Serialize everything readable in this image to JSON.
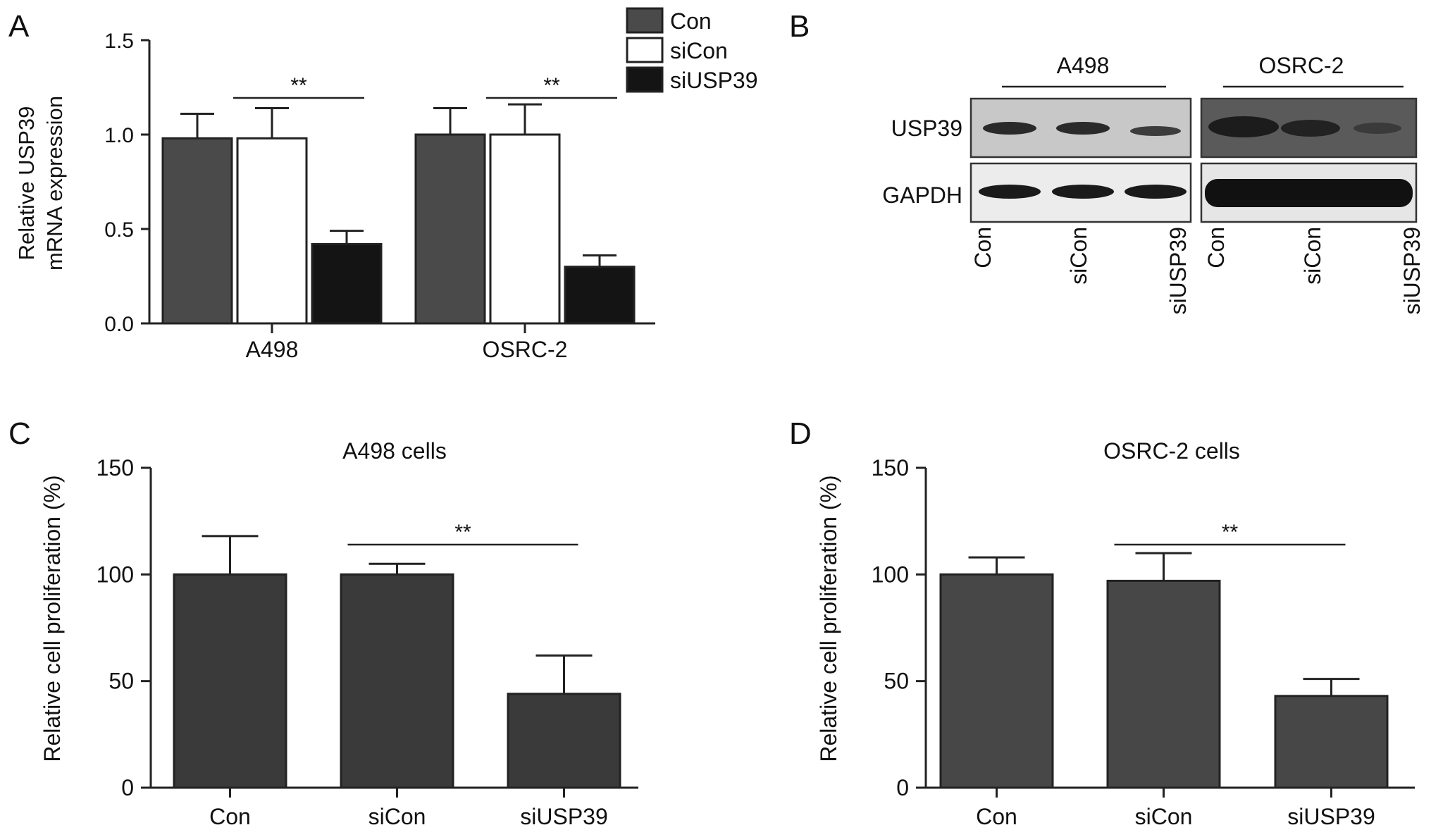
{
  "panel_labels": {
    "a": "A",
    "b": "B",
    "c": "C",
    "d": "D"
  },
  "colors": {
    "con": "#4a4a4a",
    "sicon": "#ffffff",
    "siusp39": "#141414",
    "bar_dark": "#3a3a3a",
    "axis": "#222222"
  },
  "chart_data": [
    {
      "panel": "A",
      "type": "bar",
      "title": "",
      "ylabel": [
        "Relative USP39",
        "mRNA expression"
      ],
      "ylim": [
        0,
        1.5
      ],
      "yticks": [
        "0.0",
        "0.5",
        "1.0",
        "1.5"
      ],
      "categories": [
        "A498",
        "OSRC-2"
      ],
      "series": [
        {
          "name": "Con",
          "values": [
            0.98,
            1.0
          ],
          "errors": [
            0.13,
            0.14
          ]
        },
        {
          "name": "siCon",
          "values": [
            0.98,
            1.0
          ],
          "errors": [
            0.16,
            0.16
          ]
        },
        {
          "name": "siUSP39",
          "values": [
            0.42,
            0.3
          ],
          "errors": [
            0.07,
            0.06
          ]
        }
      ],
      "significance": [
        "**",
        "**"
      ],
      "legend": {
        "placement": "top-right",
        "entries": [
          "Con",
          "siCon",
          "siUSP39"
        ]
      }
    },
    {
      "panel": "C",
      "type": "bar",
      "title": "A498 cells",
      "ylabel": "Relative cell proliferation (%)",
      "ylim": [
        0,
        150
      ],
      "yticks": [
        "0",
        "50",
        "100",
        "150"
      ],
      "categories": [
        "Con",
        "siCon",
        "siUSP39"
      ],
      "values": [
        100,
        100,
        44
      ],
      "errors": [
        18,
        5,
        18
      ],
      "significance": "**"
    },
    {
      "panel": "D",
      "type": "bar",
      "title": "OSRC-2 cells",
      "ylabel": "Relative cell proliferation (%)",
      "ylim": [
        0,
        150
      ],
      "yticks": [
        "0",
        "50",
        "100",
        "150"
      ],
      "categories": [
        "Con",
        "siCon",
        "siUSP39"
      ],
      "values": [
        100,
        97,
        43
      ],
      "errors": [
        8,
        13,
        8
      ],
      "significance": "**"
    }
  ],
  "western_blot": {
    "cell_lines": [
      "A498",
      "OSRC-2"
    ],
    "proteins": [
      "USP39",
      "GAPDH"
    ],
    "lanes": [
      "Con",
      "siCon",
      "siUSP39"
    ]
  }
}
